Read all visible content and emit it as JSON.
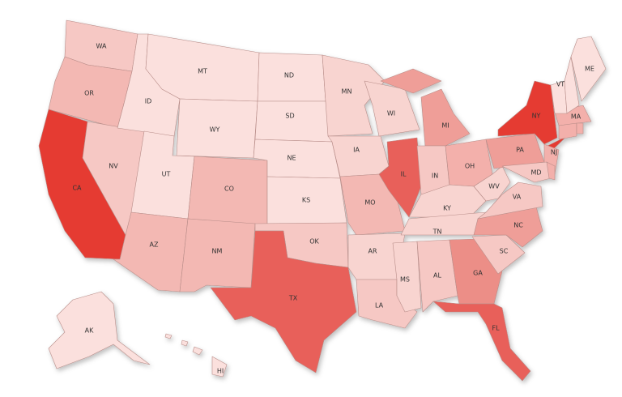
{
  "states": [
    {
      "label": "WA",
      "color": "#f6c8c4"
    },
    {
      "label": "OR",
      "color": "#f3b8b3"
    },
    {
      "label": "CA",
      "color": "#e53a31"
    },
    {
      "label": "NV",
      "color": "#f6c8c4"
    },
    {
      "label": "ID",
      "color": "#fbe0dd"
    },
    {
      "label": "MT",
      "color": "#fbe0dd"
    },
    {
      "label": "WY",
      "color": "#fbe0dd"
    },
    {
      "label": "UT",
      "color": "#fbe0dd"
    },
    {
      "label": "CO",
      "color": "#f3b8b3"
    },
    {
      "label": "AZ",
      "color": "#f3b8b3"
    },
    {
      "label": "NM",
      "color": "#f3b8b3"
    },
    {
      "label": "ND",
      "color": "#fbe0dd"
    },
    {
      "label": "SD",
      "color": "#fbe0dd"
    },
    {
      "label": "NE",
      "color": "#fbe0dd"
    },
    {
      "label": "KS",
      "color": "#fbe0dd"
    },
    {
      "label": "OK",
      "color": "#f6c8c4"
    },
    {
      "label": "TX",
      "color": "#e8605a"
    },
    {
      "label": "MN",
      "color": "#f8d4d0"
    },
    {
      "label": "IA",
      "color": "#f8d4d0"
    },
    {
      "label": "MO",
      "color": "#f3b8b3"
    },
    {
      "label": "AR",
      "color": "#f8d4d0"
    },
    {
      "label": "LA",
      "color": "#f6c8c4"
    },
    {
      "label": "WI",
      "color": "#f8d4d0"
    },
    {
      "label": "IL",
      "color": "#e8605a"
    },
    {
      "label": "MI",
      "color": "#ef9e98"
    },
    {
      "label": "IN",
      "color": "#f6c8c4"
    },
    {
      "label": "OH",
      "color": "#f3b0ab"
    },
    {
      "label": "KY",
      "color": "#f8d4d0"
    },
    {
      "label": "TN",
      "color": "#f8d4d0"
    },
    {
      "label": "MS",
      "color": "#f8d4d0"
    },
    {
      "label": "AL",
      "color": "#f6c8c4"
    },
    {
      "label": "GA",
      "color": "#ec8e87"
    },
    {
      "label": "FL",
      "color": "#e8605a"
    },
    {
      "label": "SC",
      "color": "#f6c8c4"
    },
    {
      "label": "NC",
      "color": "#ef9e98"
    },
    {
      "label": "VA",
      "color": "#f6c8c4"
    },
    {
      "label": "WV",
      "color": "#f8d4d0"
    },
    {
      "label": "PA",
      "color": "#ef9e98"
    },
    {
      "label": "NY",
      "color": "#e53a31"
    },
    {
      "label": "NJ",
      "color": "#f3b0ab"
    },
    {
      "label": "MD",
      "color": "#f6c8c4"
    },
    {
      "color": "#f3b0ab"
    },
    {
      "label": "MA",
      "color": "#f3b0ab"
    },
    {
      "color": "#f3b0ab"
    },
    {
      "color": "#f3b0ab"
    },
    {
      "label": "VT",
      "color": "#fbe0dd"
    },
    {
      "color": "#fbe0dd"
    },
    {
      "label": "ME",
      "color": "#fbe0dd"
    },
    {
      "label": "AK",
      "color": "#fbe0dd"
    },
    {
      "label": "HI",
      "color": "#fbe0dd"
    }
  ]
}
